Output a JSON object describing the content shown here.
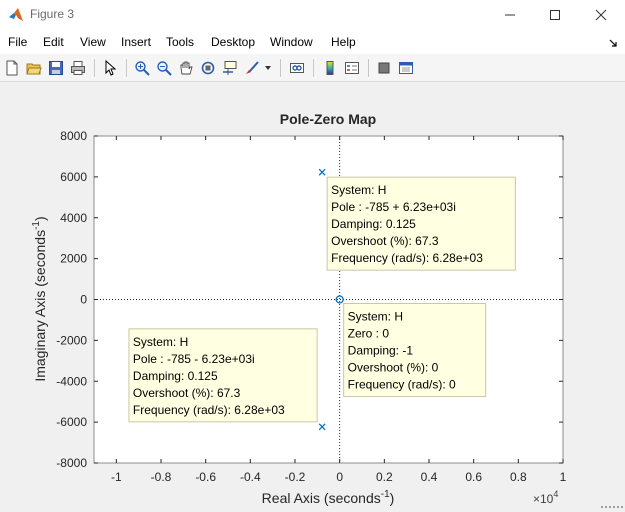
{
  "window": {
    "title": "Figure 3",
    "minimize_icon": "minimize-icon",
    "maximize_icon": "maximize-icon",
    "close_icon": "close-icon"
  },
  "menu": {
    "items": [
      "File",
      "Edit",
      "View",
      "Insert",
      "Tools",
      "Desktop",
      "Window",
      "Help"
    ]
  },
  "toolbar": {
    "icons": [
      "new-figure-icon",
      "open-file-icon",
      "save-icon",
      "print-icon",
      "pointer-icon",
      "zoom-in-icon",
      "zoom-out-icon",
      "pan-icon",
      "rotate-3d-icon",
      "data-cursor-icon",
      "brush-icon",
      "dropdown-arrow-icon",
      "link-plot-icon",
      "insert-colorbar-icon",
      "insert-legend-icon",
      "hide-plot-tools-icon",
      "show-plot-tools-icon"
    ]
  },
  "chart_data": {
    "type": "scatter",
    "title": "Pole-Zero Map",
    "xlabel": "Real Axis (seconds",
    "xlabel_sup": "-1",
    "xlabel_tail": ")",
    "ylabel": "Imaginary Axis (seconds",
    "ylabel_sup": "-1",
    "ylabel_tail": ")",
    "x_multiplier": "×10",
    "x_multiplier_exp": "4",
    "xlim": [
      -1.1,
      1.0
    ],
    "ylim": [
      -8000,
      8000
    ],
    "xticks": [
      -1,
      -0.8,
      -0.6,
      -0.4,
      -0.2,
      0,
      0.2,
      0.4,
      0.6,
      0.8,
      1
    ],
    "xtick_labels": [
      "-1",
      "-0.8",
      "-0.6",
      "-0.4",
      "-0.2",
      "0",
      "0.2",
      "0.4",
      "0.6",
      "0.8",
      "1"
    ],
    "yticks": [
      8000,
      6000,
      4000,
      2000,
      0,
      -2000,
      -4000,
      -6000,
      -8000
    ],
    "ytick_labels": [
      "8000",
      "6000",
      "4000",
      "2000",
      "0",
      "-2000",
      "-4000",
      "-6000",
      "-8000"
    ],
    "grid": false,
    "poles": [
      {
        "x": -0.0785,
        "y": 6230
      },
      {
        "x": -0.0785,
        "y": -6230
      }
    ],
    "zeros": [
      {
        "x": 0,
        "y": 0
      }
    ],
    "colors": {
      "marker": "#0072bd",
      "axes_bg": "#ffffff",
      "figure_bg": "#f0f0f0",
      "datatip_bg": "#ffffe1",
      "datatip_border": "#c8c8a8"
    },
    "datatips": [
      {
        "anchor": "top-right of upper pole",
        "lines": [
          "System: H",
          "Pole : -785 + 6.23e+03i",
          "Damping: 0.125",
          "Overshoot (%): 67.3",
          "Frequency (rad/s): 6.28e+03"
        ]
      },
      {
        "anchor": "bottom-right of zero",
        "lines": [
          "System: H",
          "Zero : 0",
          "Damping: -1",
          "Overshoot (%): 0",
          "Frequency (rad/s): 0"
        ]
      },
      {
        "anchor": "top-left of lower pole",
        "lines": [
          "System: H",
          "Pole : -785 - 6.23e+03i",
          "Damping: 0.125",
          "Overshoot (%): 67.3",
          "Frequency (rad/s): 6.28e+03"
        ]
      }
    ]
  }
}
